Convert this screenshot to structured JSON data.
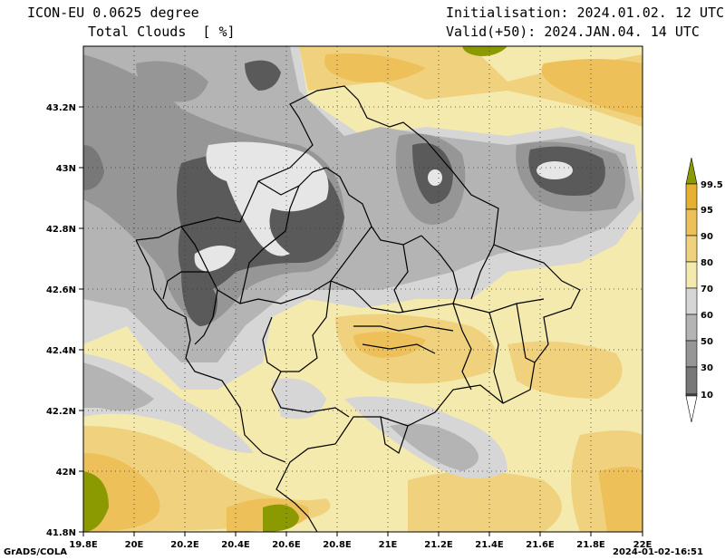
{
  "header": {
    "model": "ICON-EU 0.0625 degree",
    "variable": "Total Clouds  [ %]",
    "init": "Initialisation: 2024.01.02. 12 UTC",
    "valid": "Valid(+50): 2024.JAN.04. 14 UTC"
  },
  "axes": {
    "x_ticks": [
      "19.8E",
      "20E",
      "20.2E",
      "20.4E",
      "20.6E",
      "20.8E",
      "21E",
      "21.2E",
      "21.4E",
      "21.6E",
      "21.8E",
      "22E"
    ],
    "y_ticks": [
      "43.2N",
      "43N",
      "42.8N",
      "42.6N",
      "42.4N",
      "42.2N",
      "42N",
      "41.8N"
    ],
    "lon_range": [
      19.8,
      22.0
    ],
    "lat_range": [
      41.8,
      43.4
    ],
    "grid": "dotted"
  },
  "legend": {
    "labels": [
      "99.5",
      "95",
      "90",
      "80",
      "70",
      "60",
      "50",
      "30",
      "10"
    ],
    "colors": [
      "#8a9a00",
      "#e8b030",
      "#eec05a",
      "#f0d27e",
      "#f4eaae",
      "#d6d6d6",
      "#b4b4b4",
      "#969696",
      "#787878",
      "#5a5a5a"
    ],
    "placement": "right"
  },
  "footer": {
    "left": "GrADS/COLA",
    "right": "2024-01-02-16:51"
  }
}
